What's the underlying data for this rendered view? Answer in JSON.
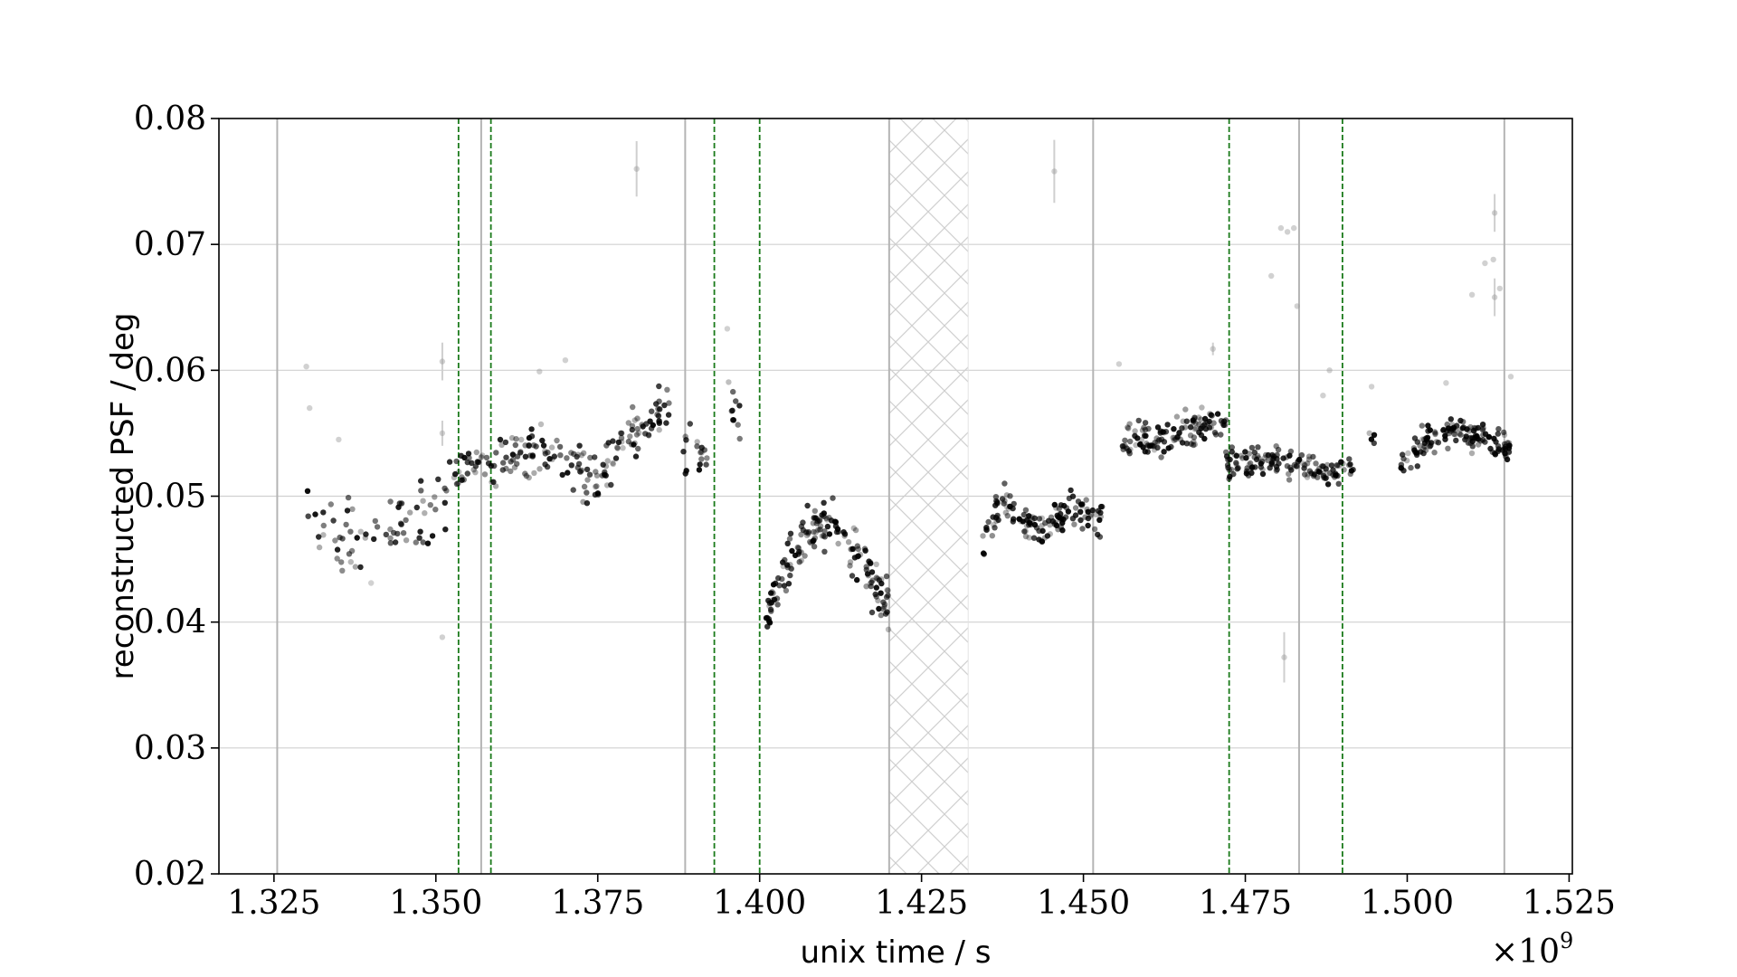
{
  "chart_data": {
    "type": "scatter",
    "title": "",
    "xlabel": "unix time / s",
    "ylabel": "reconstructed PSF / deg",
    "x_offset_label": {
      "base": "×10",
      "exponent": "9"
    },
    "xlim": [
      1.3165,
      1.5255
    ],
    "ylim": [
      0.02,
      0.08
    ],
    "xticks": [
      1.325,
      1.35,
      1.375,
      1.4,
      1.425,
      1.45,
      1.475,
      1.5,
      1.525
    ],
    "xtick_labels": [
      "1.325",
      "1.350",
      "1.375",
      "1.400",
      "1.425",
      "1.450",
      "1.475",
      "1.500",
      "1.525"
    ],
    "yticks": [
      0.02,
      0.03,
      0.04,
      0.05,
      0.06,
      0.07,
      0.08
    ],
    "ytick_labels": [
      "0.02",
      "0.03",
      "0.04",
      "0.05",
      "0.06",
      "0.07",
      "0.08"
    ],
    "grid": true,
    "legend": "none",
    "point_color": "#000000",
    "grid_color": "#d0d0d0",
    "gray_vline_color": "#b4b4b4",
    "green_vline_color": "#1a7a1a",
    "gray_vlines": [
      1.3255,
      1.357,
      1.3885,
      1.42,
      1.4515,
      1.4833,
      1.515
    ],
    "green_dashed_vlines": [
      1.3535,
      1.3585,
      1.393,
      1.4,
      1.4725,
      1.49
    ],
    "hatched_region": [
      1.42,
      1.4322
    ],
    "segments": [
      {
        "x0": 1.33,
        "x1": 1.352,
        "y": [
          0.049,
          0.047,
          0.0462,
          0.0465,
          0.047,
          0.0475,
          0.048,
          0.0485,
          0.049,
          0.05
        ],
        "spread": 0.0014,
        "n": 70
      },
      {
        "x0": 1.352,
        "x1": 1.366,
        "y": [
          0.0515,
          0.052,
          0.0525,
          0.053,
          0.0533,
          0.0535,
          0.0538
        ],
        "spread": 0.001,
        "n": 70
      },
      {
        "x0": 1.366,
        "x1": 1.377,
        "y": [
          0.054,
          0.053,
          0.0525,
          0.052,
          0.0518,
          0.052
        ],
        "spread": 0.0011,
        "n": 60
      },
      {
        "x0": 1.377,
        "x1": 1.386,
        "y": [
          0.053,
          0.0545,
          0.0555,
          0.0562,
          0.0565
        ],
        "spread": 0.001,
        "n": 55
      },
      {
        "x0": 1.388,
        "x1": 1.392,
        "y": [
          0.055,
          0.0545,
          0.0535,
          0.053
        ],
        "spread": 0.0012,
        "n": 18
      },
      {
        "x0": 1.395,
        "x1": 1.397,
        "y": [
          0.059,
          0.057,
          0.0558
        ],
        "spread": 0.001,
        "n": 10
      },
      {
        "x0": 1.401,
        "x1": 1.411,
        "y": [
          0.0405,
          0.0425,
          0.0445,
          0.046,
          0.047,
          0.0478,
          0.048
        ],
        "spread": 0.001,
        "n": 90
      },
      {
        "x0": 1.411,
        "x1": 1.42,
        "y": [
          0.0478,
          0.047,
          0.046,
          0.0448,
          0.0435,
          0.042,
          0.041
        ],
        "spread": 0.0011,
        "n": 70
      },
      {
        "x0": 1.434,
        "x1": 1.438,
        "y": [
          0.044,
          0.047,
          0.049,
          0.05
        ],
        "spread": 0.0008,
        "n": 25
      },
      {
        "x0": 1.438,
        "x1": 1.445,
        "y": [
          0.0492,
          0.0482,
          0.0475,
          0.0478
        ],
        "spread": 0.0007,
        "n": 50
      },
      {
        "x0": 1.445,
        "x1": 1.453,
        "y": [
          0.048,
          0.0485,
          0.049,
          0.049,
          0.0485,
          0.0478
        ],
        "spread": 0.0007,
        "n": 60
      },
      {
        "x0": 1.456,
        "x1": 1.472,
        "y": [
          0.0545,
          0.0548,
          0.0543,
          0.0545,
          0.055,
          0.0555,
          0.056,
          0.0555
        ],
        "spread": 0.0006,
        "n": 120
      },
      {
        "x0": 1.472,
        "x1": 1.49,
        "y": [
          0.0525,
          0.0528,
          0.0528,
          0.0526,
          0.0525,
          0.0523,
          0.052,
          0.0518
        ],
        "spread": 0.0006,
        "n": 130
      },
      {
        "x0": 1.49,
        "x1": 1.492,
        "y": [
          0.052,
          0.0525
        ],
        "spread": 0.0005,
        "n": 8
      },
      {
        "x0": 1.494,
        "x1": 1.495,
        "y": [
          0.055,
          0.055
        ],
        "spread": 0.0004,
        "n": 4
      },
      {
        "x0": 1.499,
        "x1": 1.502,
        "y": [
          0.0525,
          0.0535,
          0.054
        ],
        "spread": 0.0006,
        "n": 18
      },
      {
        "x0": 1.502,
        "x1": 1.516,
        "y": [
          0.0545,
          0.0548,
          0.0552,
          0.0548,
          0.0543,
          0.054
        ],
        "spread": 0.0006,
        "n": 120
      }
    ],
    "outliers": [
      {
        "x": 1.33,
        "y": 0.0603
      },
      {
        "x": 1.3305,
        "y": 0.057
      },
      {
        "x": 1.335,
        "y": 0.0545
      },
      {
        "x": 1.351,
        "y": 0.0607,
        "err": 0.0015
      },
      {
        "x": 1.351,
        "y": 0.055,
        "err": 0.001
      },
      {
        "x": 1.351,
        "y": 0.0388
      },
      {
        "x": 1.34,
        "y": 0.0431
      },
      {
        "x": 1.366,
        "y": 0.0599
      },
      {
        "x": 1.37,
        "y": 0.0608
      },
      {
        "x": 1.381,
        "y": 0.076,
        "err": 0.0022
      },
      {
        "x": 1.395,
        "y": 0.0633
      },
      {
        "x": 1.4455,
        "y": 0.0758,
        "err": 0.0025
      },
      {
        "x": 1.4555,
        "y": 0.0605
      },
      {
        "x": 1.47,
        "y": 0.0617,
        "err": 0.0005
      },
      {
        "x": 1.479,
        "y": 0.0675
      },
      {
        "x": 1.4805,
        "y": 0.0713
      },
      {
        "x": 1.4815,
        "y": 0.071
      },
      {
        "x": 1.4825,
        "y": 0.0713
      },
      {
        "x": 1.483,
        "y": 0.0651
      },
      {
        "x": 1.481,
        "y": 0.0372,
        "err": 0.002
      },
      {
        "x": 1.488,
        "y": 0.06
      },
      {
        "x": 1.487,
        "y": 0.058
      },
      {
        "x": 1.4945,
        "y": 0.0587
      },
      {
        "x": 1.506,
        "y": 0.059
      },
      {
        "x": 1.51,
        "y": 0.066
      },
      {
        "x": 1.512,
        "y": 0.0685
      },
      {
        "x": 1.5133,
        "y": 0.0688
      },
      {
        "x": 1.5135,
        "y": 0.0725,
        "err": 0.0015
      },
      {
        "x": 1.5135,
        "y": 0.0658,
        "err": 0.0015
      },
      {
        "x": 1.5143,
        "y": 0.0665
      },
      {
        "x": 1.516,
        "y": 0.0595
      }
    ]
  }
}
